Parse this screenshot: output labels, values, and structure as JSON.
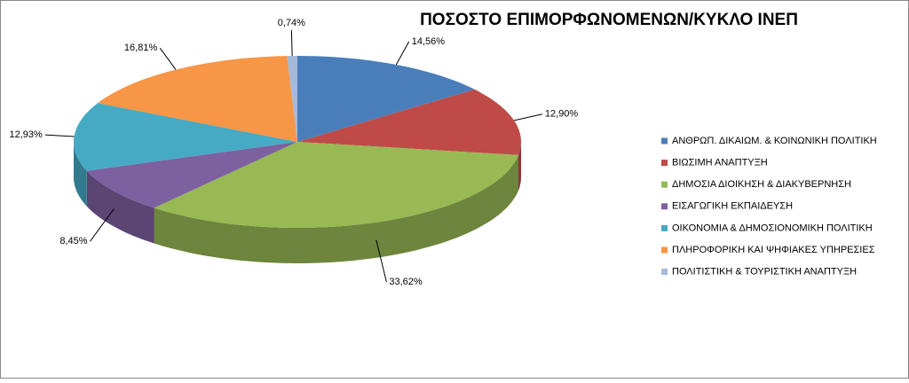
{
  "chart_data": {
    "type": "pie3d",
    "title": "ΠΟΣΟΣΤΟ ΕΠΙΜΟΡΦΩΝΟΜΕΝΩΝ/ΚΥΚΛΟ ΙΝΕΠ",
    "categories": [
      "ΑΝΘΡΩΠ. ΔΙΚΑΙΩΜ. & ΚΟΙΝΩΝΙΚΗ ΠΟΛΙΤΙΚΗ",
      "ΒΙΩΣΙΜΗ ΑΝΑΠΤΥΞΗ",
      "ΔΗΜΟΣΙΑ ΔΙΟΙΚΗΣΗ & ΔΙΑΚΥΒΕΡΝΗΣΗ",
      "ΕΙΣΑΓΩΓΙΚΗ ΕΚΠΑΙΔΕΥΣΗ",
      "ΟΙΚΟΝΟΜΙΑ & ΔΗΜΟΣΙΟΝΟΜΙΚΗ ΠΟΛΙΤΙΚΗ",
      "ΠΛΗΡΟΦΟΡΙΚΗ ΚΑΙ ΨΗΦΙΑΚΕΣ ΥΠΗΡΕΣΙΕΣ",
      "ΠΟΛΙΤΙΣΤΙΚΗ & ΤΟΥΡΙΣΤΙΚΗ ΑΝΑΠΤΥΞΗ"
    ],
    "values": [
      14.56,
      12.9,
      33.62,
      8.45,
      12.93,
      16.81,
      0.74
    ],
    "value_labels": [
      "14,56%",
      "12,90%",
      "33,62%",
      "8,45%",
      "12,93%",
      "16,81%",
      "0,74%"
    ],
    "colors": [
      "#4a7ebb",
      "#be4b48",
      "#98b954",
      "#7d60a0",
      "#46aac5",
      "#f79646",
      "#a5b9d9"
    ],
    "legend": "right"
  }
}
